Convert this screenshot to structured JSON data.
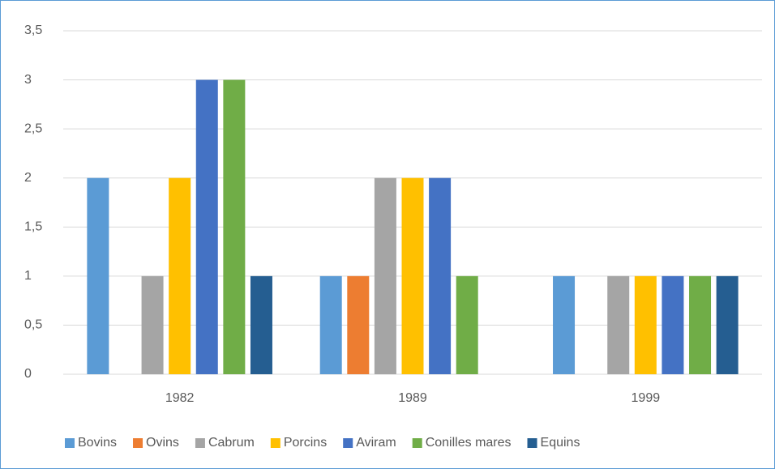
{
  "chart_data": {
    "type": "bar",
    "categories": [
      "1982",
      "1989",
      "1999"
    ],
    "series": [
      {
        "name": "Bovins",
        "color": "#5b9bd5",
        "values": [
          2,
          1,
          1
        ]
      },
      {
        "name": "Ovins",
        "color": "#ed7d31",
        "values": [
          0,
          1,
          0
        ]
      },
      {
        "name": "Cabrum",
        "color": "#a5a5a5",
        "values": [
          1,
          2,
          1
        ]
      },
      {
        "name": "Porcins",
        "color": "#ffc000",
        "values": [
          2,
          2,
          1
        ]
      },
      {
        "name": "Aviram",
        "color": "#4472c4",
        "values": [
          3,
          2,
          1
        ]
      },
      {
        "name": "Conilles mares",
        "color": "#70ad47",
        "values": [
          3,
          1,
          1
        ]
      },
      {
        "name": "Equins",
        "color": "#255e91",
        "values": [
          1,
          0,
          1
        ]
      }
    ],
    "ylim": [
      0,
      3.5
    ],
    "yticks": [
      0,
      {
        "value": 0.5,
        "label": "0,5"
      },
      1,
      {
        "value": 1.5,
        "label": "1,5"
      },
      2,
      {
        "value": 2.5,
        "label": "2,5"
      },
      3,
      {
        "value": 3.5,
        "label": "3,5"
      }
    ],
    "grid": true,
    "legend": "bottom"
  }
}
